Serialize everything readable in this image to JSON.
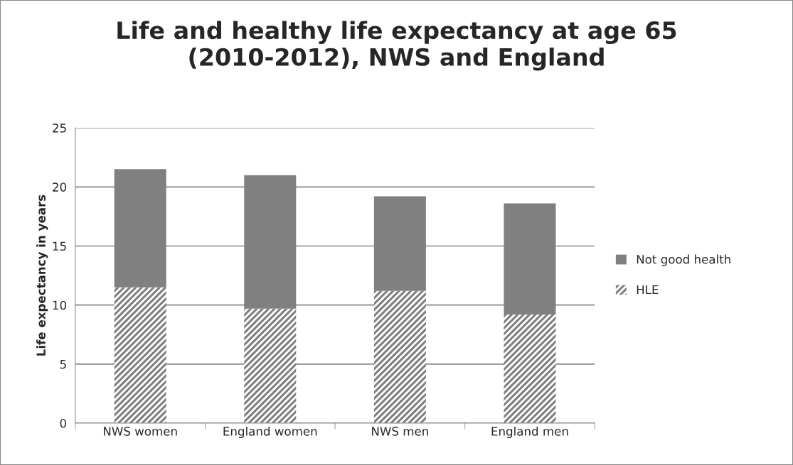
{
  "chart_data": {
    "type": "bar",
    "title": "Life and healthy life expectancy at age 65\n(2010-2012), NWS and England",
    "ylabel": "Life expectancy in years",
    "categories": [
      "NWS women",
      "England women",
      "NWS men",
      "England men"
    ],
    "stacked": true,
    "series": [
      {
        "name": "HLE",
        "color": "#808080",
        "values": [
          11.5,
          9.7,
          11.2,
          9.2
        ]
      },
      {
        "name": "Not good health",
        "color": "#808080",
        "values": [
          10.0,
          11.3,
          8.0,
          9.4
        ]
      }
    ],
    "ylim": [
      0,
      25
    ],
    "yticks": [
      0,
      5,
      10,
      15,
      20,
      25
    ],
    "grid": "y",
    "legend": "right"
  }
}
